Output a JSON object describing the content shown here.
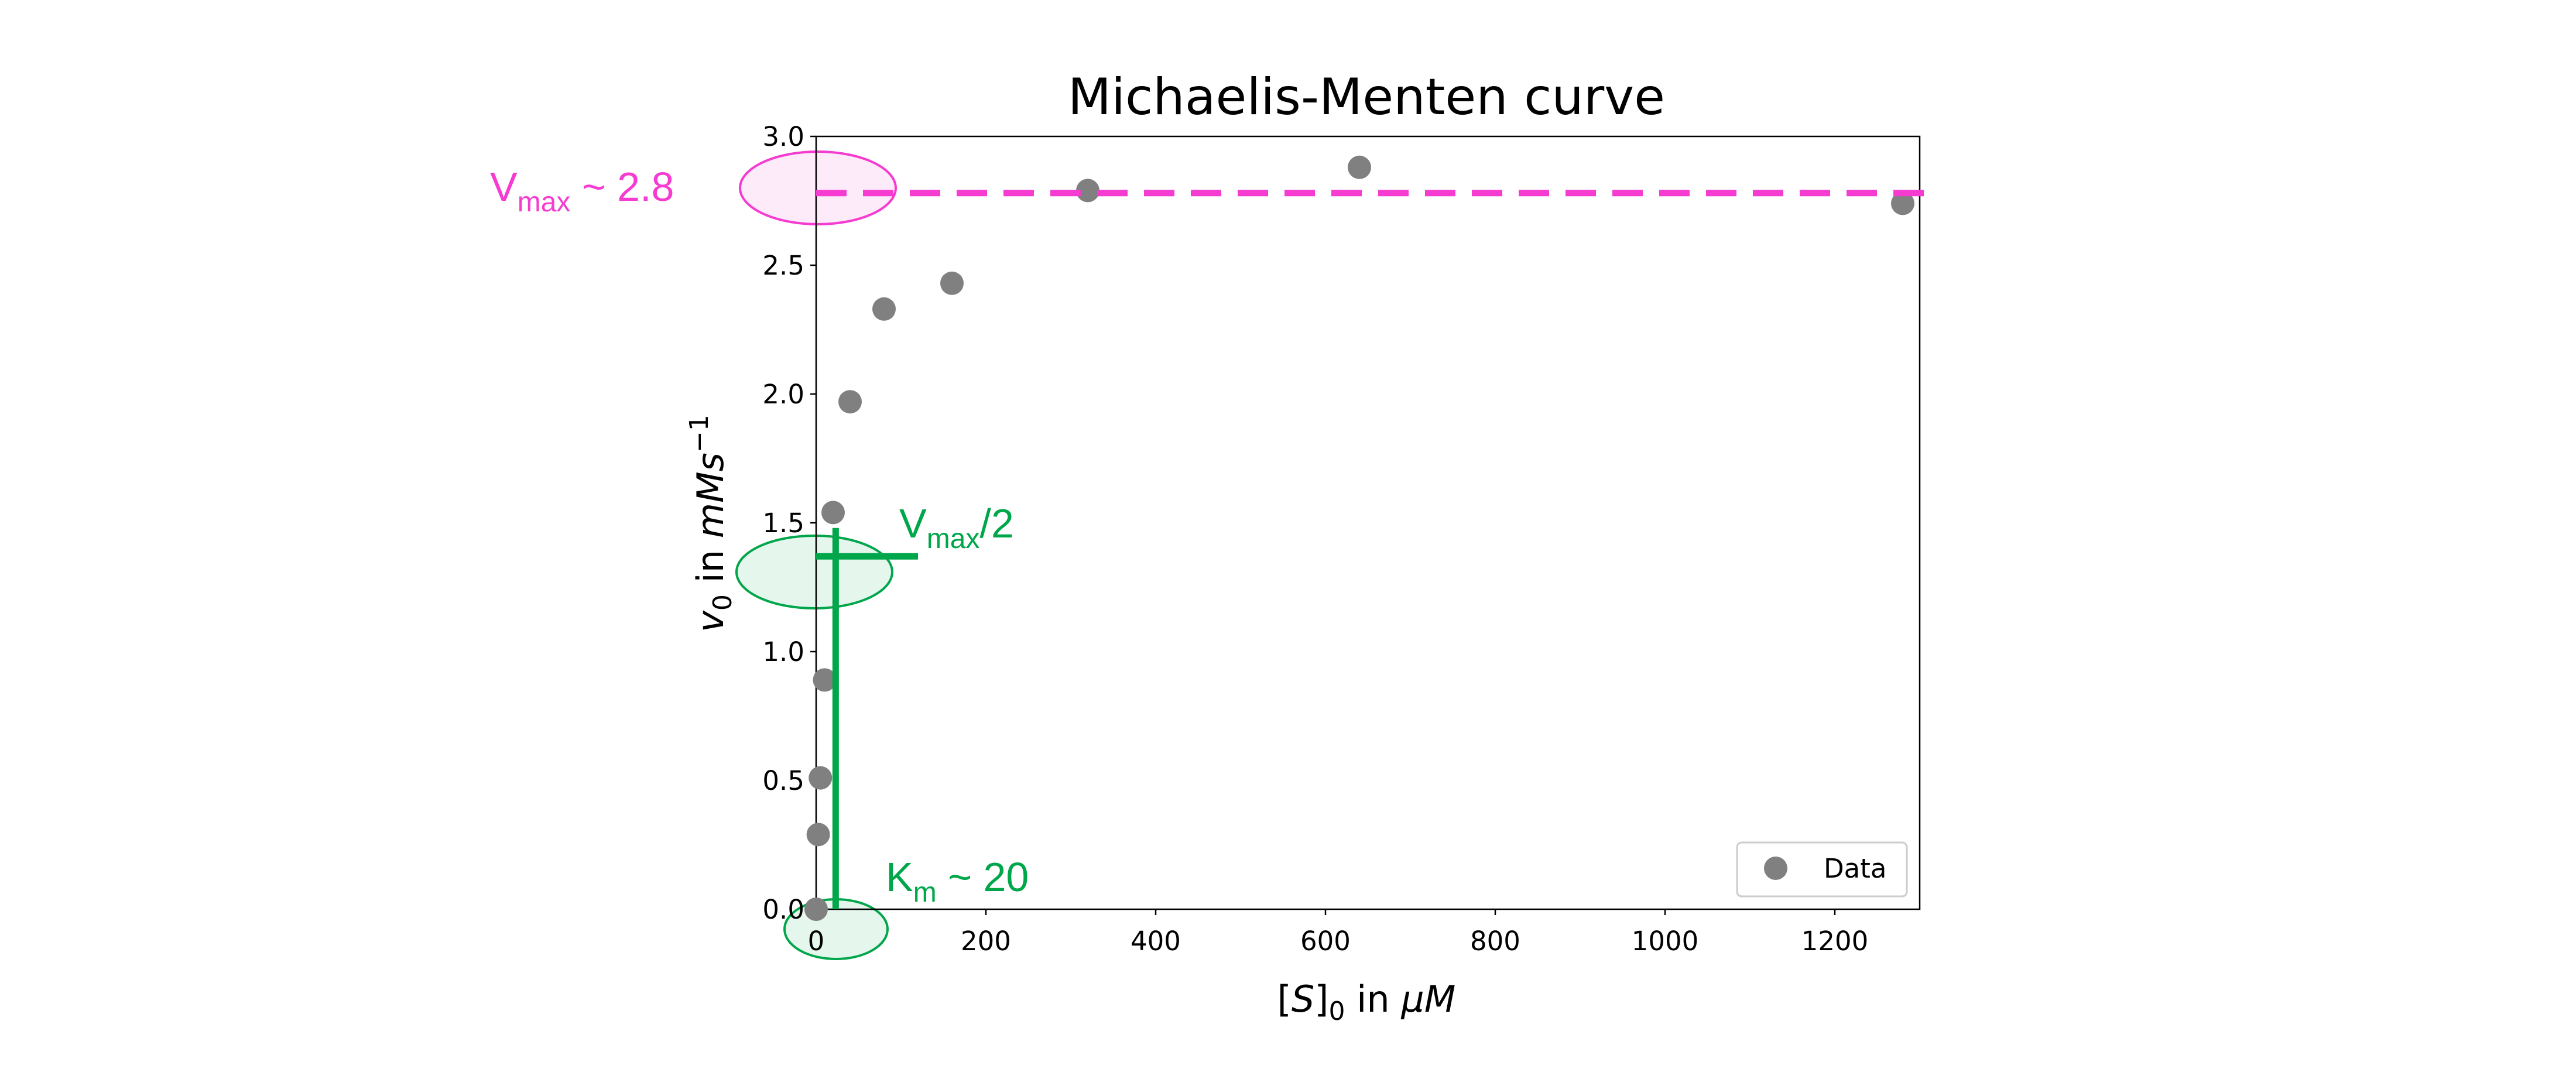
{
  "chart_data": {
    "type": "scatter",
    "title": "Michaelis-Menten curve",
    "x_label": [
      "[",
      "S",
      "]",
      "0",
      " in ",
      "μM"
    ],
    "y_label": [
      "v",
      "0",
      " in ",
      "mMs",
      "−1"
    ],
    "series": [
      {
        "name": "Data",
        "color": "#808080",
        "x": [
          0,
          2.5,
          5,
          10,
          20,
          40,
          80,
          160,
          320,
          640,
          1280
        ],
        "values": [
          0,
          0.29,
          0.51,
          0.89,
          1.54,
          1.97,
          2.33,
          2.43,
          2.79,
          2.88,
          2.74
        ]
      }
    ],
    "xlim": [
      0,
      1300
    ],
    "ylim": [
      0,
      3
    ],
    "xticks": [
      0,
      200,
      400,
      600,
      800,
      1000,
      1200
    ],
    "yticks": [
      {
        "value": 0,
        "label": "0.0"
      },
      0.5,
      {
        "value": 1,
        "label": "1.0"
      },
      1.5,
      {
        "value": 2,
        "label": "2.0"
      },
      2.5,
      {
        "value": 3,
        "label": "3.0"
      }
    ],
    "legend": "lower right",
    "vmax_line": {
      "y": 2.78,
      "color": "#f53bd0"
    },
    "half_line": {
      "y": 1.37,
      "x": [
        0,
        120
      ],
      "color": "#00a64a"
    },
    "km_line": {
      "x": 23,
      "y": [
        0,
        1.48
      ],
      "color": "#00a64a"
    },
    "annotations": [
      {
        "parts": [
          "V",
          "max",
          " ~ 2.8"
        ],
        "color": "#f53bd0"
      },
      {
        "parts": [
          "V",
          "max",
          "/2"
        ],
        "color": "#00a64a"
      },
      {
        "parts": [
          "K",
          "m",
          " ~ 20"
        ],
        "color": "#00a64a"
      }
    ]
  }
}
